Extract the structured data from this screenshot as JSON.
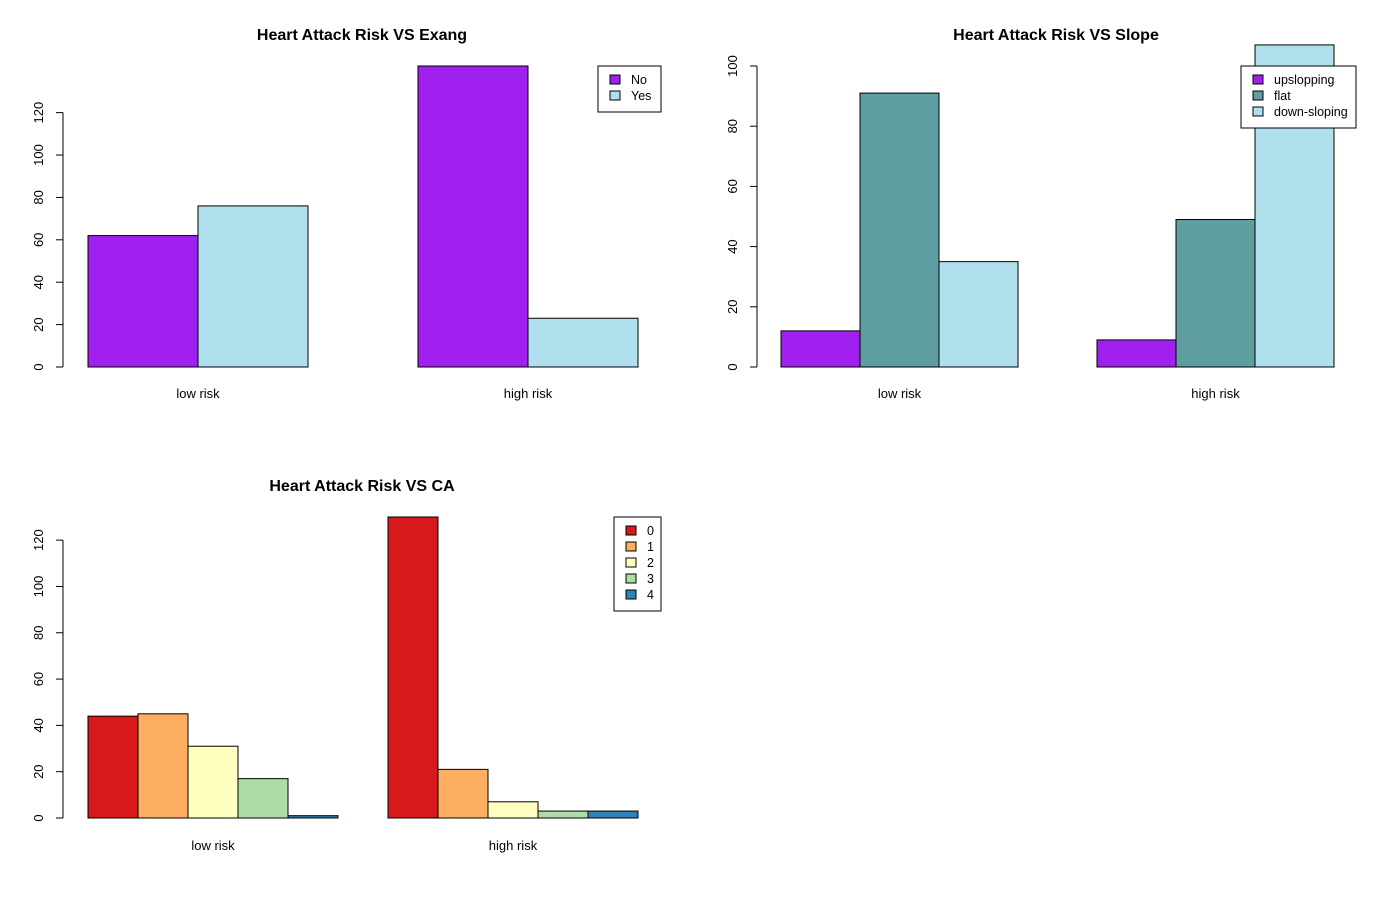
{
  "chart_data": [
    {
      "type": "bar",
      "title": "Heart Attack Risk VS Exang",
      "categories": [
        "low risk",
        "high risk"
      ],
      "series": [
        {
          "name": "No",
          "color": "#A020F0",
          "values": [
            62,
            142
          ]
        },
        {
          "name": "Yes",
          "color": "#B0DFEE",
          "values": [
            76,
            23
          ]
        }
      ],
      "ylim": [
        0,
        142
      ],
      "yticks": [
        0,
        20,
        40,
        60,
        80,
        100,
        120
      ],
      "legend_position": "top-right",
      "grid": false
    },
    {
      "type": "bar",
      "title": "Heart Attack Risk VS Slope",
      "categories": [
        "low risk",
        "high risk"
      ],
      "series": [
        {
          "name": "upslopping",
          "color": "#A020F0",
          "values": [
            12,
            9
          ]
        },
        {
          "name": "flat",
          "color": "#5F9EA0",
          "values": [
            91,
            49
          ]
        },
        {
          "name": "down-sloping",
          "color": "#B0DFEE",
          "values": [
            35,
            107
          ]
        }
      ],
      "ylim": [
        0,
        100
      ],
      "yticks": [
        0,
        20,
        40,
        60,
        80,
        100
      ],
      "legend_position": "top-right",
      "grid": false
    },
    {
      "type": "bar",
      "title": "Heart Attack Risk VS CA",
      "categories": [
        "low risk",
        "high risk"
      ],
      "series": [
        {
          "name": "0",
          "color": "#D7191C",
          "values": [
            44,
            130
          ]
        },
        {
          "name": "1",
          "color": "#FDAE61",
          "values": [
            45,
            21
          ]
        },
        {
          "name": "2",
          "color": "#FFFFBF",
          "values": [
            31,
            7
          ]
        },
        {
          "name": "3",
          "color": "#ABDDA4",
          "values": [
            17,
            3
          ]
        },
        {
          "name": "4",
          "color": "#2B83BA",
          "values": [
            1,
            3
          ]
        }
      ],
      "ylim": [
        0,
        130
      ],
      "yticks": [
        0,
        20,
        40,
        60,
        80,
        100,
        120
      ],
      "legend_position": "top-right",
      "grid": false
    }
  ]
}
